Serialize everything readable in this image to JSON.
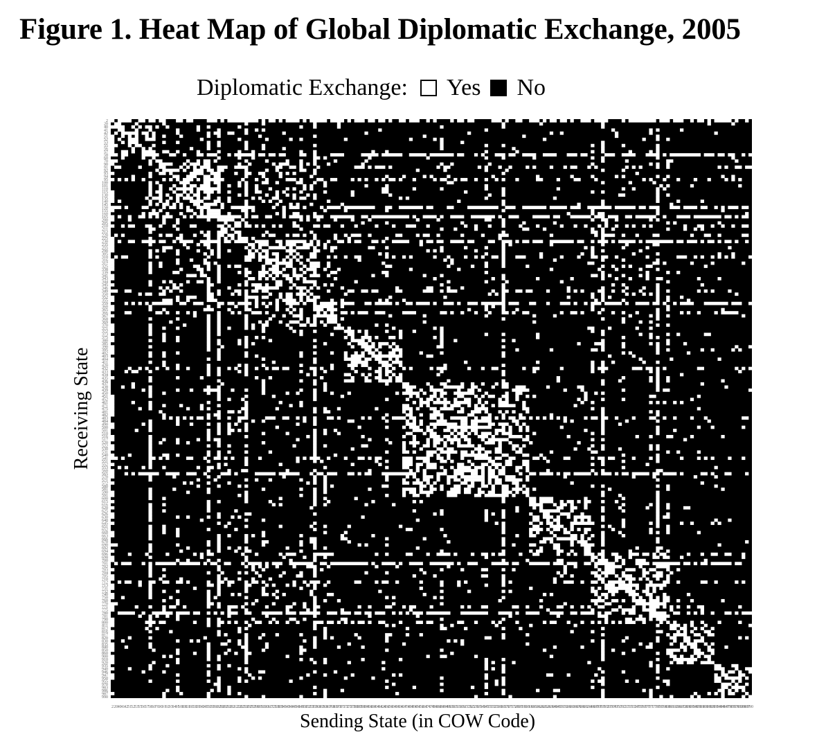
{
  "figure": {
    "title": "Figure 1. Heat Map of Global Diplomatic Exchange, 2005",
    "legend_label": "Diplomatic Exchange:",
    "legend_yes": "Yes",
    "legend_no": "No"
  },
  "chart_data": {
    "type": "heatmap",
    "title": "Figure 1. Heat Map of Global Diplomatic Exchange, 2005",
    "xlabel": "Sending State (in COW Code)",
    "ylabel": "Receiving State",
    "legend": {
      "placement": "top",
      "entries": [
        {
          "label": "Yes",
          "color": "#ffffff"
        },
        {
          "label": "No",
          "color": "#000000"
        }
      ]
    },
    "colors": {
      "yes": "#ffffff",
      "no": "#000000"
    },
    "tick_labels": [
      "2",
      "20",
      "40",
      "41",
      "42",
      "51",
      "52",
      "53",
      "55",
      "56",
      "57",
      "58",
      "60",
      "70",
      "90",
      "91",
      "92",
      "93",
      "94",
      "95",
      "100",
      "101",
      "110",
      "115",
      "130",
      "135",
      "140",
      "145",
      "150",
      "155",
      "160",
      "165",
      "200",
      "205",
      "210",
      "211",
      "212",
      "220",
      "225",
      "230",
      "235",
      "255",
      "290",
      "305",
      "310",
      "316",
      "317",
      "325",
      "338",
      "339",
      "341",
      "343",
      "344",
      "345",
      "346",
      "349",
      "350",
      "352",
      "355",
      "359",
      "360",
      "365",
      "366",
      "367",
      "368",
      "369",
      "370",
      "371",
      "372",
      "373",
      "375",
      "380",
      "385",
      "390",
      "395",
      "402",
      "403",
      "404",
      "411",
      "420",
      "432",
      "433",
      "434",
      "435",
      "436",
      "437",
      "438",
      "439",
      "450",
      "451",
      "452",
      "461",
      "471",
      "475",
      "481",
      "482",
      "483",
      "484",
      "490",
      "500",
      "501",
      "510",
      "516",
      "517",
      "520",
      "522",
      "530",
      "531",
      "540",
      "541",
      "551",
      "552",
      "553",
      "560",
      "565",
      "570",
      "571",
      "572",
      "580",
      "581",
      "590",
      "591",
      "600",
      "615",
      "616",
      "620",
      "625",
      "626",
      "630",
      "640",
      "645",
      "651",
      "652",
      "660",
      "663",
      "666",
      "670",
      "690",
      "692",
      "694",
      "696",
      "698",
      "700",
      "701",
      "702",
      "703",
      "704",
      "705",
      "710",
      "712",
      "713",
      "731",
      "732",
      "740",
      "750",
      "760",
      "770",
      "771",
      "775",
      "780",
      "781",
      "790",
      "800",
      "811",
      "812",
      "816",
      "817",
      "820",
      "830",
      "835",
      "840",
      "850",
      "860",
      "900",
      "910",
      "920",
      "935",
      "940",
      "946",
      "947",
      "950",
      "955",
      "970",
      "983",
      "986",
      "987",
      "990"
    ],
    "x_range": [
      "2",
      "990"
    ],
    "y_range": [
      "2",
      "990"
    ],
    "grid": false,
    "cell_note": "binary matrix: white cell = exchange (Yes), black cell = no exchange (No); diagonal is white; dense white blocks appear in regional clusters"
  }
}
